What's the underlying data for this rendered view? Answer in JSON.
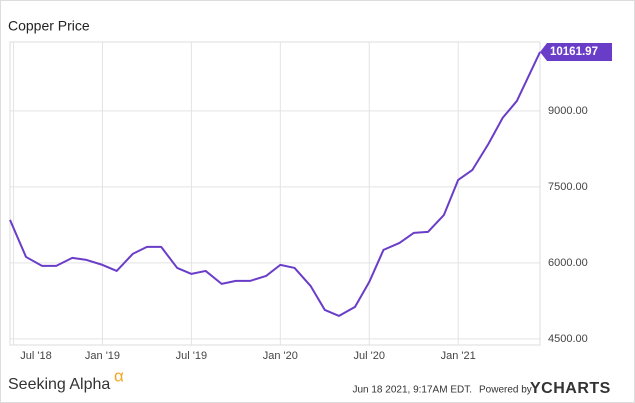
{
  "chart_data": {
    "type": "line",
    "title": "Copper Price",
    "x": [
      2018.48,
      2018.57,
      2018.66,
      2018.74,
      2018.83,
      2018.91,
      2019.0,
      2019.08,
      2019.17,
      2019.25,
      2019.33,
      2019.42,
      2019.5,
      2019.58,
      2019.67,
      2019.75,
      2019.83,
      2019.92,
      2020.0,
      2020.08,
      2020.17,
      2020.25,
      2020.33,
      2020.42,
      2020.5,
      2020.58,
      2020.67,
      2020.75,
      2020.83,
      2020.92,
      2021.0,
      2021.08,
      2021.17,
      2021.25,
      2021.33,
      2021.46
    ],
    "series": [
      {
        "name": "Copper Price",
        "color": "#6a3dc8",
        "values": [
          6849,
          6118,
          5941,
          5941,
          6099,
          6059,
          5961,
          5842,
          6178,
          6316,
          6316,
          5901,
          5783,
          5842,
          5586,
          5645,
          5645,
          5743,
          5961,
          5901,
          5546,
          5072,
          4954,
          5132,
          5625,
          6257,
          6395,
          6592,
          6612,
          6947,
          7638,
          7836,
          8349,
          8862,
          9197,
          10161.97
        ]
      }
    ],
    "xlim": [
      2018.48,
      2021.46
    ],
    "xticks": [
      {
        "value": 2018.5,
        "label": "Jul '18"
      },
      {
        "value": 2019.0,
        "label": "Jan '19"
      },
      {
        "value": 2019.5,
        "label": "Jul '19"
      },
      {
        "value": 2020.0,
        "label": "Jan '20"
      },
      {
        "value": 2020.5,
        "label": "Jul '20"
      },
      {
        "value": 2021.0,
        "label": "Jan '21"
      }
    ],
    "ylim": [
      4380,
      10360
    ],
    "yticks": [
      {
        "value": 4500,
        "label": "4500.00"
      },
      {
        "value": 6000,
        "label": "6000.00"
      },
      {
        "value": 7500,
        "label": "7500.00"
      },
      {
        "value": 9000,
        "label": "9000.00"
      }
    ],
    "grid": true,
    "footer": {
      "brand": "Seeking Alpha",
      "brand_mark": "α",
      "timestamp": "Jun 18 2021, 9:17AM EDT.",
      "powered_by": "Powered by",
      "provider": "YCHARTS"
    }
  }
}
